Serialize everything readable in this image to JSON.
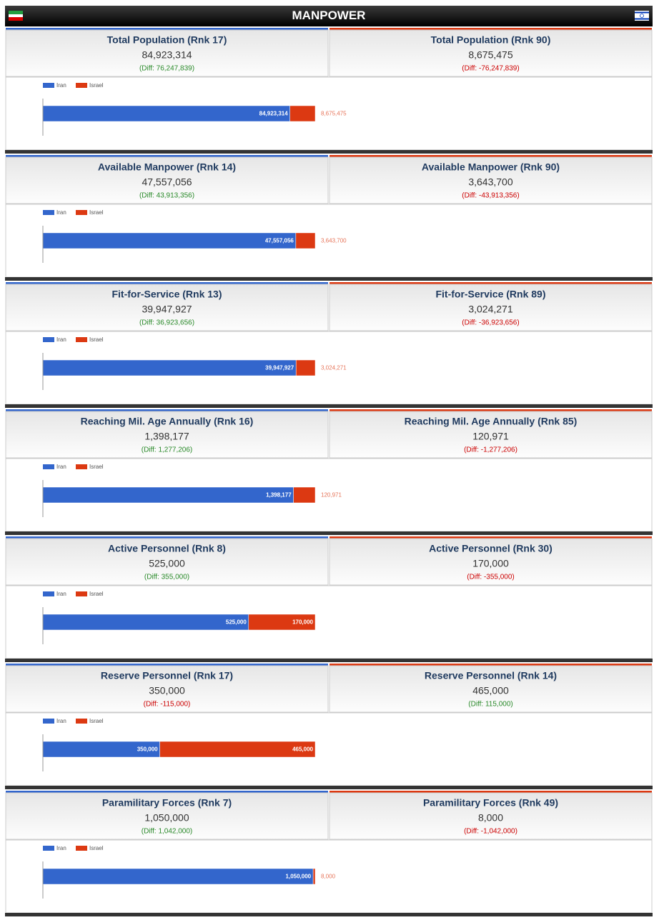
{
  "header": {
    "title": "MANPOWER"
  },
  "panels": [
    {
      "left": {
        "title": "Total Population (Rnk 17)",
        "value": "84,923,314",
        "diff": "(Diff: 76,247,839)"
      },
      "right": {
        "title": "Total Population (Rnk 90)",
        "value": "8,675,475",
        "diff": "(Diff: -76,247,839)"
      }
    },
    {
      "left": {
        "title": "Available Manpower (Rnk 14)",
        "value": "47,557,056",
        "diff": "(Diff: 43,913,356)"
      },
      "right": {
        "title": "Available Manpower (Rnk 90)",
        "value": "3,643,700",
        "diff": "(Diff: -43,913,356)"
      }
    },
    {
      "left": {
        "title": "Fit-for-Service (Rnk 13)",
        "value": "39,947,927",
        "diff": "(Diff: 36,923,656)"
      },
      "right": {
        "title": "Fit-for-Service (Rnk 89)",
        "value": "3,024,271",
        "diff": "(Diff: -36,923,656)"
      }
    },
    {
      "left": {
        "title": "Reaching Mil. Age Annually (Rnk 16)",
        "value": "1,398,177",
        "diff": "(Diff: 1,277,206)"
      },
      "right": {
        "title": "Reaching Mil. Age Annually (Rnk 85)",
        "value": "120,971",
        "diff": "(Diff: -1,277,206)"
      }
    },
    {
      "left": {
        "title": "Active Personnel (Rnk 8)",
        "value": "525,000",
        "diff": "(Diff: 355,000)"
      },
      "right": {
        "title": "Active Personnel (Rnk 30)",
        "value": "170,000",
        "diff": "(Diff: -355,000)"
      }
    },
    {
      "left": {
        "title": "Reserve Personnel (Rnk 17)",
        "value": "350,000",
        "diff": "(Diff: -115,000)"
      },
      "right": {
        "title": "Reserve Personnel (Rnk 14)",
        "value": "465,000",
        "diff": "(Diff: 115,000)"
      }
    },
    {
      "left": {
        "title": "Paramilitary Forces (Rnk 7)",
        "value": "1,050,000",
        "diff": "(Diff: 1,042,000)"
      },
      "right": {
        "title": "Paramilitary Forces (Rnk 49)",
        "value": "8,000",
        "diff": "(Diff: -1,042,000)"
      }
    }
  ],
  "chart_data": [
    {
      "type": "bar",
      "series": [
        {
          "name": "Iran",
          "color": "#3366cc",
          "values": [
            84923314
          ],
          "value_labels": [
            "84,923,314"
          ]
        },
        {
          "name": "Israel",
          "color": "#dc3912",
          "values": [
            8675475
          ],
          "value_labels": [
            "8,675,475"
          ]
        }
      ]
    },
    {
      "type": "bar",
      "series": [
        {
          "name": "Iran",
          "color": "#3366cc",
          "values": [
            47557056
          ],
          "value_labels": [
            "47,557,056"
          ]
        },
        {
          "name": "Israel",
          "color": "#dc3912",
          "values": [
            3643700
          ],
          "value_labels": [
            "3,643,700"
          ]
        }
      ]
    },
    {
      "type": "bar",
      "series": [
        {
          "name": "Iran",
          "color": "#3366cc",
          "values": [
            39947927
          ],
          "value_labels": [
            "39,947,927"
          ]
        },
        {
          "name": "Israel",
          "color": "#dc3912",
          "values": [
            3024271
          ],
          "value_labels": [
            "3,024,271"
          ]
        }
      ]
    },
    {
      "type": "bar",
      "series": [
        {
          "name": "Iran",
          "color": "#3366cc",
          "values": [
            1398177
          ],
          "value_labels": [
            "1,398,177"
          ]
        },
        {
          "name": "Israel",
          "color": "#dc3912",
          "values": [
            120971
          ],
          "value_labels": [
            "120,971"
          ]
        }
      ]
    },
    {
      "type": "bar",
      "series": [
        {
          "name": "Iran",
          "color": "#3366cc",
          "values": [
            525000
          ],
          "value_labels": [
            "525,000"
          ]
        },
        {
          "name": "Israel",
          "color": "#dc3912",
          "values": [
            170000
          ],
          "value_labels": [
            "170,000"
          ]
        }
      ]
    },
    {
      "type": "bar",
      "series": [
        {
          "name": "Iran",
          "color": "#3366cc",
          "values": [
            350000
          ],
          "value_labels": [
            "350,000"
          ]
        },
        {
          "name": "Israel",
          "color": "#dc3912",
          "values": [
            465000
          ],
          "value_labels": [
            "465,000"
          ]
        }
      ]
    },
    {
      "type": "bar",
      "series": [
        {
          "name": "Iran",
          "color": "#3366cc",
          "values": [
            1050000
          ],
          "value_labels": [
            "1,050,000"
          ]
        },
        {
          "name": "Israel",
          "color": "#dc3912",
          "values": [
            8000
          ],
          "value_labels": [
            "8,000"
          ]
        }
      ]
    }
  ]
}
